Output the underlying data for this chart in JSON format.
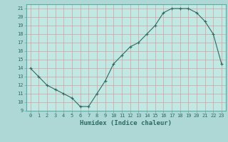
{
  "title": "",
  "xlabel": "Humidex (Indice chaleur)",
  "x": [
    0,
    1,
    2,
    3,
    4,
    5,
    6,
    7,
    8,
    9,
    10,
    11,
    12,
    13,
    14,
    15,
    16,
    17,
    18,
    19,
    20,
    21,
    22,
    23
  ],
  "y": [
    14,
    13,
    12,
    11.5,
    11,
    10.5,
    9.5,
    9.5,
    11,
    12.5,
    14.5,
    15.5,
    16.5,
    17,
    18,
    19,
    20.5,
    21,
    21,
    21,
    20.5,
    19.5,
    18,
    14.5
  ],
  "line_color": "#2d6b62",
  "marker": "+",
  "marker_size": 3.5,
  "bg_color": "#aed8d5",
  "grid_color_h": "#d4a0a0",
  "grid_color_v": "#d4a0a0",
  "plot_bg": "#c2e8e4",
  "xlim": [
    -0.5,
    23.5
  ],
  "ylim": [
    9,
    21.5
  ],
  "xticks": [
    0,
    1,
    2,
    3,
    4,
    5,
    6,
    7,
    8,
    9,
    10,
    11,
    12,
    13,
    14,
    15,
    16,
    17,
    18,
    19,
    20,
    21,
    22,
    23
  ],
  "yticks": [
    9,
    10,
    11,
    12,
    13,
    14,
    15,
    16,
    17,
    18,
    19,
    20,
    21
  ],
  "tick_fontsize": 5.0,
  "xlabel_fontsize": 6.5,
  "xlabel_fontweight": "bold"
}
